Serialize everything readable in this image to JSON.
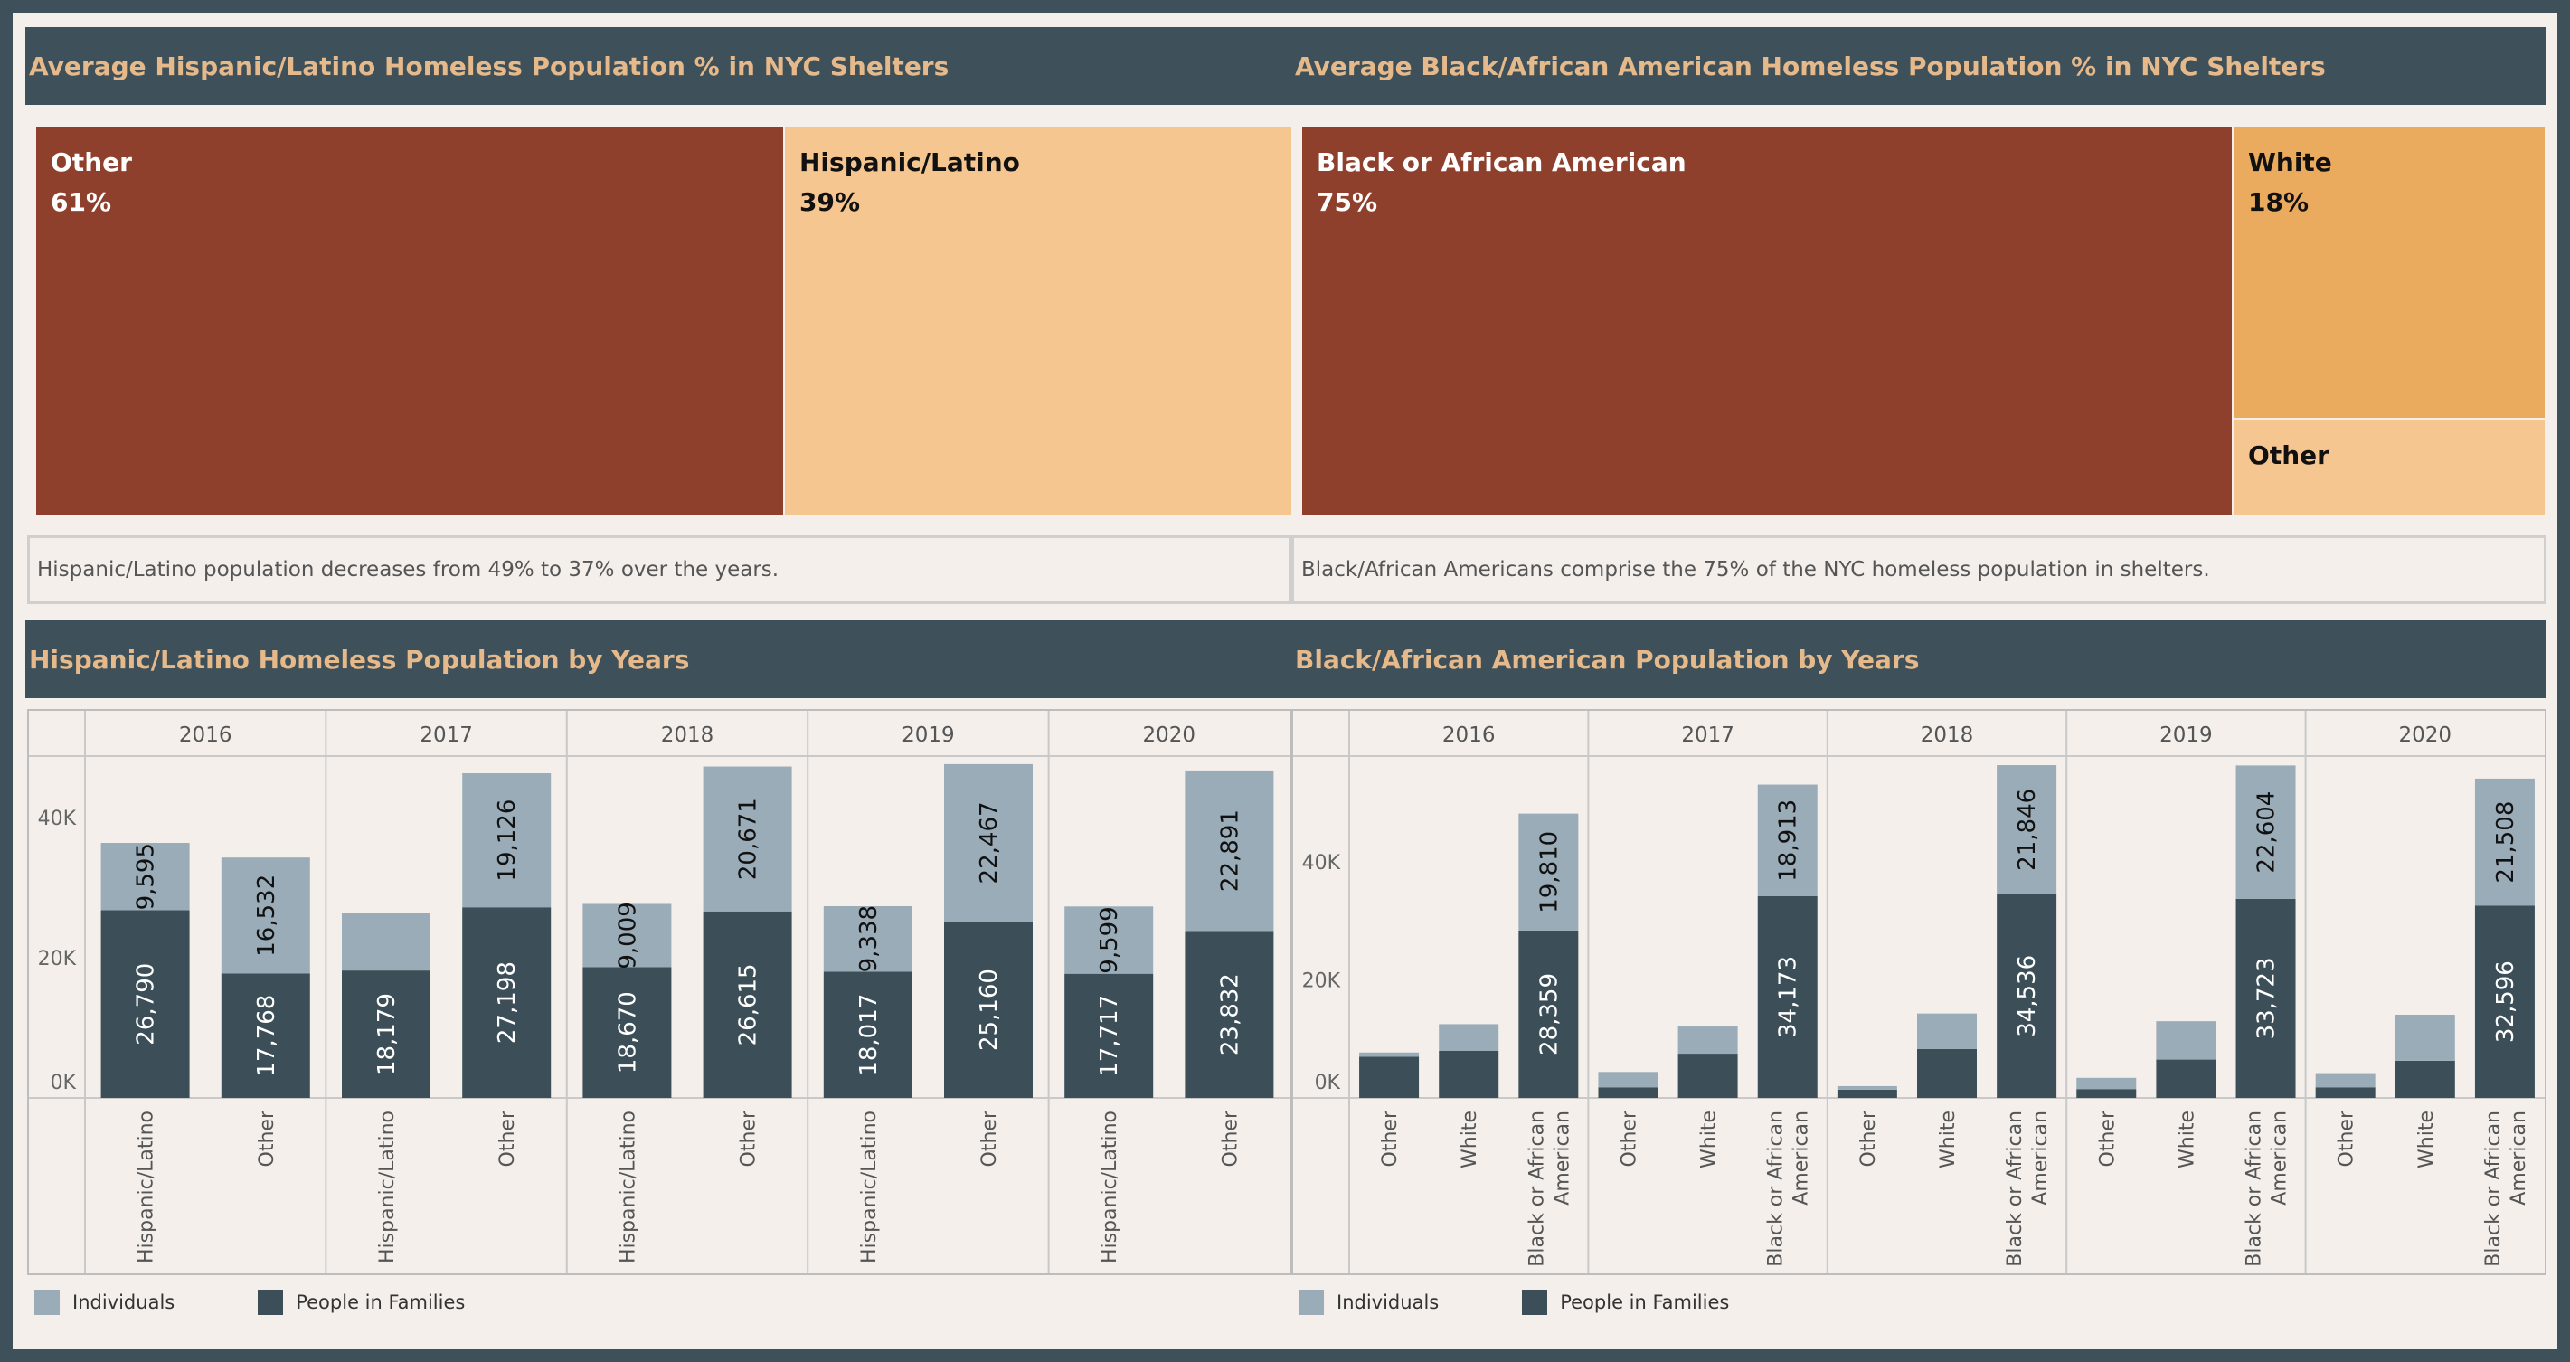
{
  "colors": {
    "header_bg": "#3e5059",
    "header_text": "#e6b98a",
    "individuals": "#9aacb8",
    "families": "#3c4f58",
    "dark_red": "#8e402c",
    "light_orange": "#f6c690",
    "orange": "#ebab5e"
  },
  "top_left": {
    "title": "Average Hispanic/Latino Homeless Population % in NYC Shelters",
    "caption": "Hispanic/Latino population decreases from 49% to 37% over the years."
  },
  "top_right": {
    "title": "Average Black/African American Homeless Population % in NYC Shelters",
    "caption": "Black/African Americans comprise the 75% of the NYC homeless population in shelters."
  },
  "bottom_left": {
    "title": "Hispanic/Latino Homeless Population by Years"
  },
  "bottom_right": {
    "title": "Black/African American Population by Years"
  },
  "legend": {
    "individuals": "Individuals",
    "families": "People in Families"
  },
  "chart_data": [
    {
      "type": "treemap",
      "title": "Average Hispanic/Latino Homeless Population % in NYC Shelters",
      "items": [
        {
          "name": "Other",
          "value": 61,
          "label": "61%",
          "color": "#8e402c"
        },
        {
          "name": "Hispanic/Latino",
          "value": 39,
          "label": "39%",
          "color": "#f6c690"
        }
      ]
    },
    {
      "type": "treemap",
      "title": "Average Black/African American Homeless Population % in NYC Shelters",
      "items": [
        {
          "name": "Black or African American",
          "value": 75,
          "label": "75%",
          "color": "#8e402c"
        },
        {
          "name": "White",
          "value": 18,
          "label": "18%",
          "color": "#ebab5e"
        },
        {
          "name": "Other",
          "value": 7,
          "label": "",
          "color": "#f6c690"
        }
      ]
    },
    {
      "type": "bar",
      "stacked": true,
      "title": "Hispanic/Latino Homeless Population by Years",
      "years": [
        "2016",
        "2017",
        "2018",
        "2019",
        "2020"
      ],
      "categories": [
        "Hispanic/Latino",
        "Other"
      ],
      "yticks": [
        "0K",
        "20K",
        "40K"
      ],
      "ylim": [
        0,
        48000
      ],
      "series": [
        {
          "name": "People in Families",
          "color": "#3c4f58",
          "values": [
            [
              26790,
              17768
            ],
            [
              18179,
              27198
            ],
            [
              18670,
              26615
            ],
            [
              18017,
              25160
            ],
            [
              17717,
              23832
            ]
          ],
          "labels": [
            [
              "26,790",
              "17,768"
            ],
            [
              "18,179",
              "27,198"
            ],
            [
              "18,670",
              "26,615"
            ],
            [
              "18,017",
              "25,160"
            ],
            [
              "17,717",
              "23,832"
            ]
          ]
        },
        {
          "name": "Individuals",
          "color": "#9aacb8",
          "values": [
            [
              9595,
              16532
            ],
            [
              8200,
              19126
            ],
            [
              9009,
              20671
            ],
            [
              9338,
              22467
            ],
            [
              9599,
              22891
            ]
          ],
          "labels": [
            [
              "9,595",
              "16,532"
            ],
            [
              "",
              "19,126"
            ],
            [
              "9,009",
              "20,671"
            ],
            [
              "9,338",
              "22,467"
            ],
            [
              "9,599",
              "22,891"
            ]
          ]
        }
      ]
    },
    {
      "type": "bar",
      "stacked": true,
      "title": "Black/African American Population by Years",
      "years": [
        "2016",
        "2017",
        "2018",
        "2019",
        "2020"
      ],
      "categories": [
        "Other",
        "White",
        "Black or African American"
      ],
      "category_lines": [
        [
          "Other"
        ],
        [
          "White"
        ],
        [
          "Black or African",
          "American"
        ]
      ],
      "yticks": [
        "0K",
        "20K",
        "40K"
      ],
      "ylim": [
        0,
        57000
      ],
      "series": [
        {
          "name": "People in Families",
          "color": "#3c4f58",
          "values": [
            [
              7000,
              8000,
              28359
            ],
            [
              1800,
              7500,
              34173
            ],
            [
              1400,
              8300,
              34536
            ],
            [
              1500,
              6500,
              33723
            ],
            [
              1800,
              6300,
              32596
            ]
          ],
          "labels": [
            [
              "",
              "",
              "28,359"
            ],
            [
              "",
              "",
              "34,173"
            ],
            [
              "",
              "",
              "34,536"
            ],
            [
              "",
              "",
              "33,723"
            ],
            [
              "",
              "",
              "32,596"
            ]
          ]
        },
        {
          "name": "Individuals",
          "color": "#9aacb8",
          "values": [
            [
              700,
              4500,
              19810
            ],
            [
              2600,
              4600,
              18913
            ],
            [
              600,
              6000,
              21846
            ],
            [
              1900,
              6500,
              22604
            ],
            [
              2400,
              7800,
              21508
            ]
          ],
          "labels": [
            [
              "",
              "",
              "19,810"
            ],
            [
              "",
              "",
              "18,913"
            ],
            [
              "",
              "",
              "21,846"
            ],
            [
              "",
              "",
              "22,604"
            ],
            [
              "",
              "",
              "21,508"
            ]
          ]
        }
      ]
    }
  ]
}
